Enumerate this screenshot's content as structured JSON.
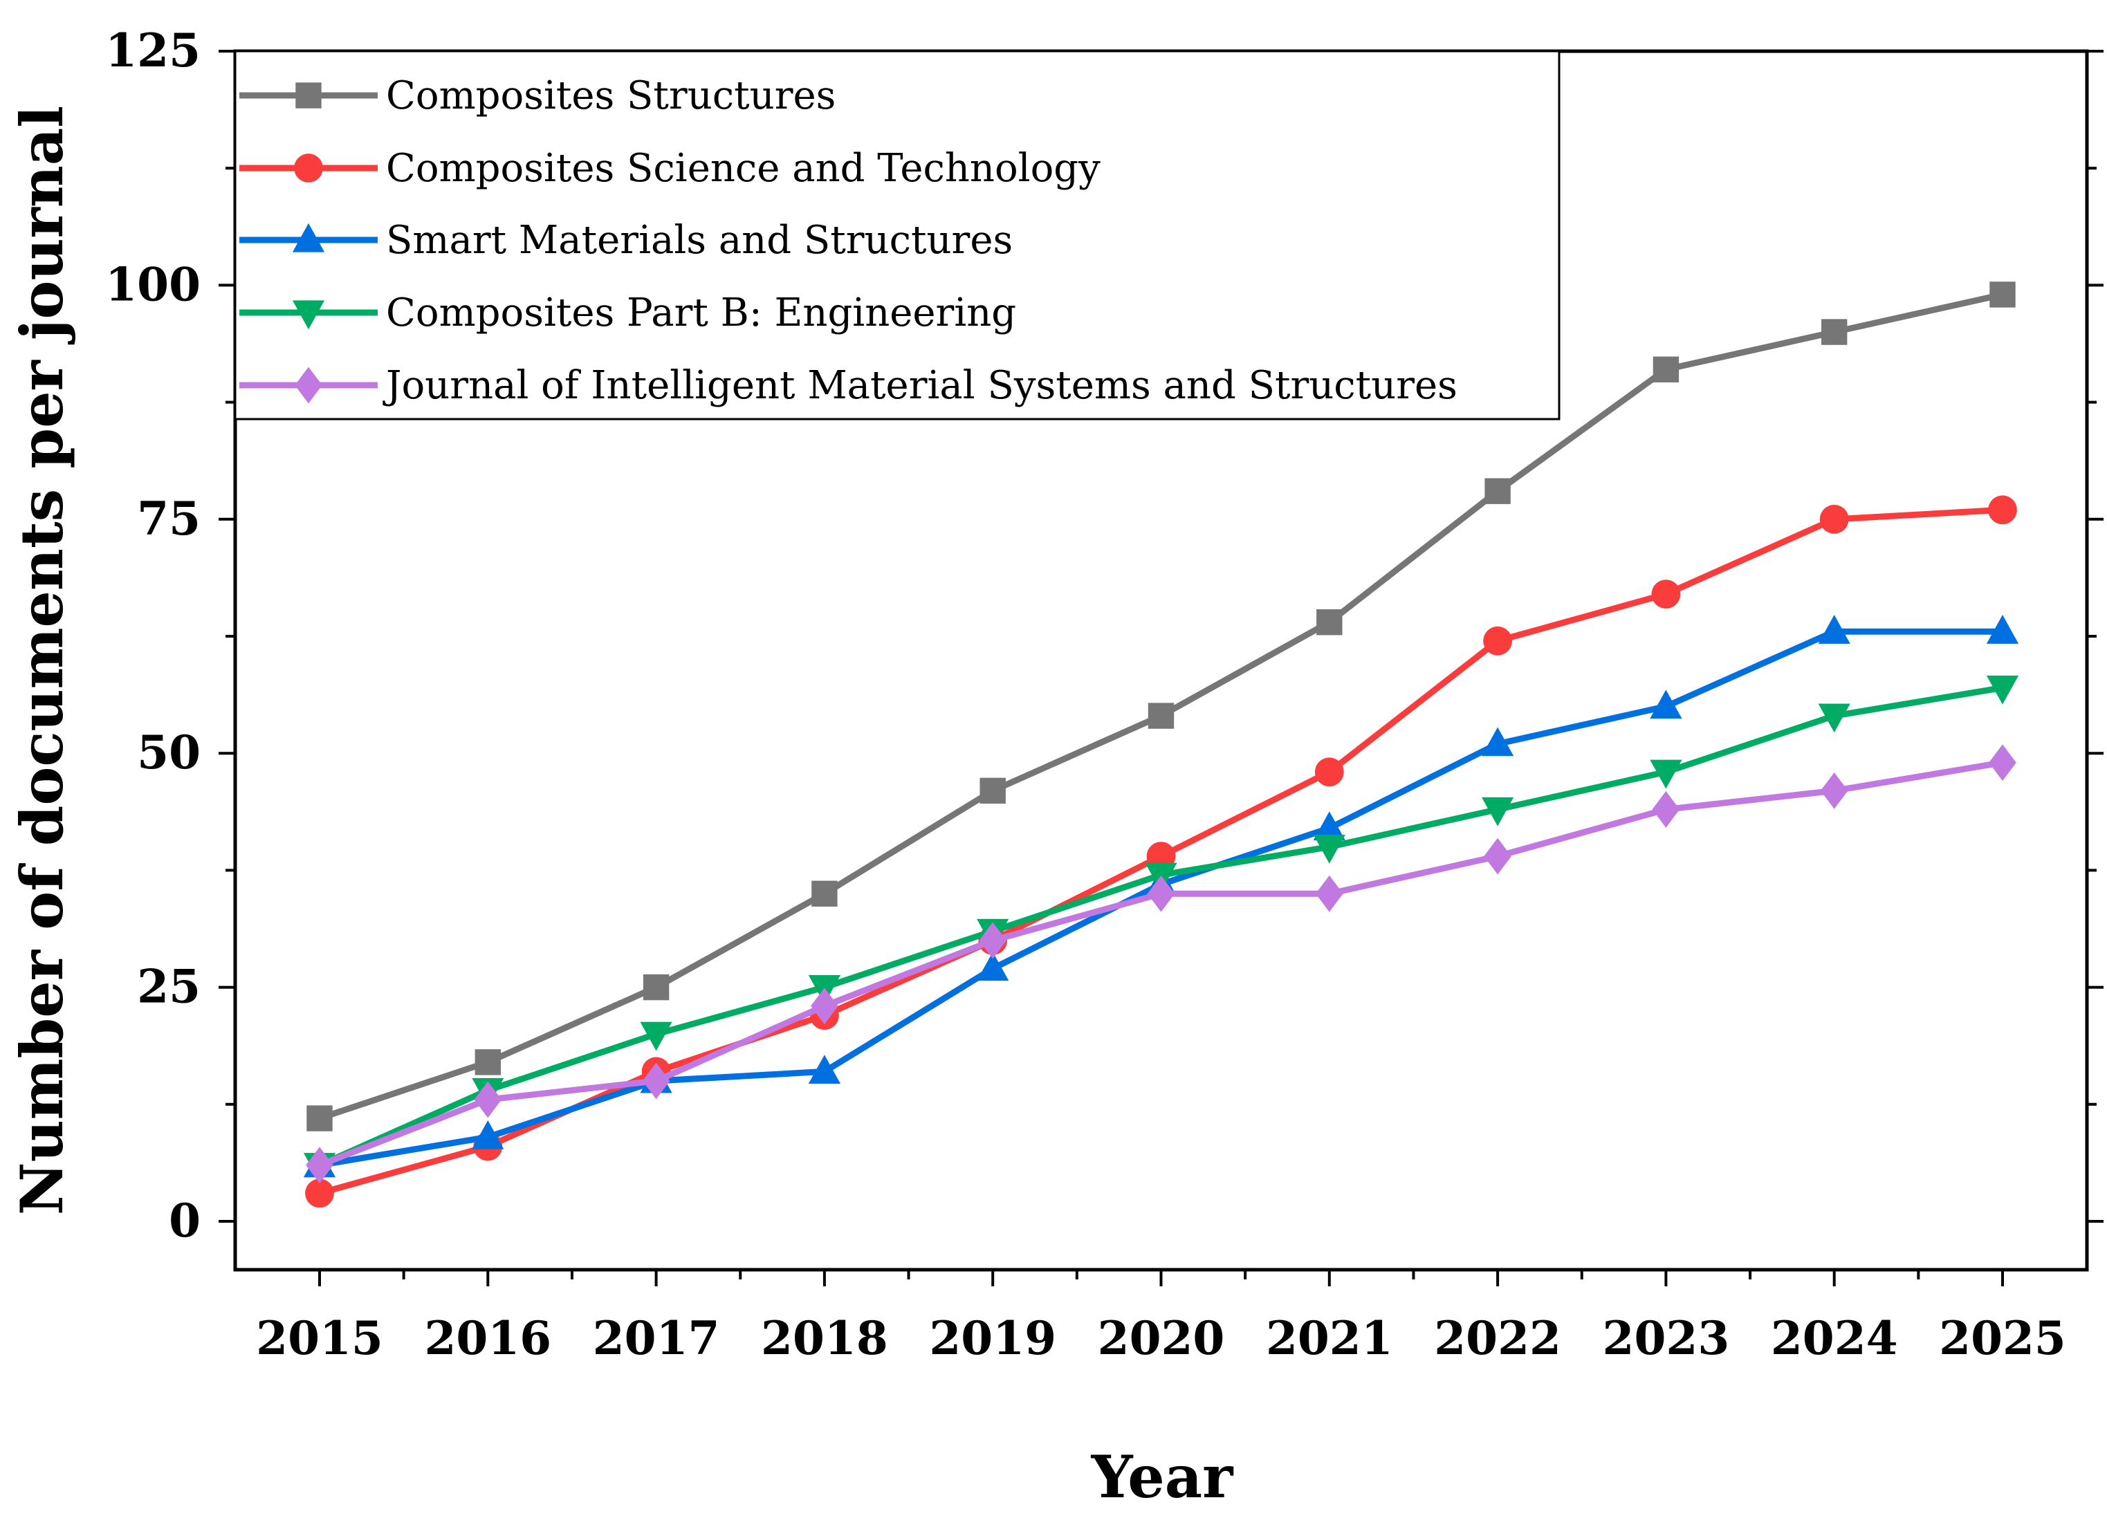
{
  "chart_data": {
    "type": "line",
    "title": "",
    "xlabel": "Year",
    "ylabel": "Number of documents per journal",
    "x": [
      2015,
      2016,
      2017,
      2018,
      2019,
      2020,
      2021,
      2022,
      2023,
      2024,
      2025
    ],
    "xticks": [
      "2015",
      "2016",
      "2017",
      "2018",
      "2019",
      "2020",
      "2021",
      "2022",
      "2023",
      "2024",
      "2025"
    ],
    "yticks": [
      "0",
      "25",
      "50",
      "75",
      "100",
      "125"
    ],
    "ylim": [
      -5,
      125
    ],
    "legend_position": "top-left",
    "series": [
      {
        "name": "Composites Structures",
        "color": "#767676",
        "marker": "square",
        "values": [
          11,
          17,
          25,
          35,
          46,
          54,
          64,
          78,
          91,
          95,
          99
        ]
      },
      {
        "name": "Composites Science and Technology",
        "color": "#fa3c3c",
        "marker": "circle",
        "values": [
          3,
          8,
          16,
          22,
          30,
          39,
          48,
          62,
          67,
          75,
          76
        ]
      },
      {
        "name": "Smart Materials and Structures",
        "color": "#0070e0",
        "marker": "triangle-up",
        "values": [
          6,
          9,
          15,
          16,
          27,
          36,
          42,
          51,
          55,
          63,
          63
        ]
      },
      {
        "name": "Composites Part B: Engineering",
        "color": "#00ac64",
        "marker": "triangle-down",
        "values": [
          6,
          14,
          20,
          25,
          31,
          37,
          40,
          44,
          48,
          54,
          57
        ]
      },
      {
        "name": "Journal of Intelligent Material Systems and Structures",
        "color": "#c178e0",
        "marker": "diamond",
        "values": [
          6,
          13,
          15,
          23,
          30,
          35,
          35,
          39,
          44,
          46,
          49
        ]
      }
    ]
  }
}
